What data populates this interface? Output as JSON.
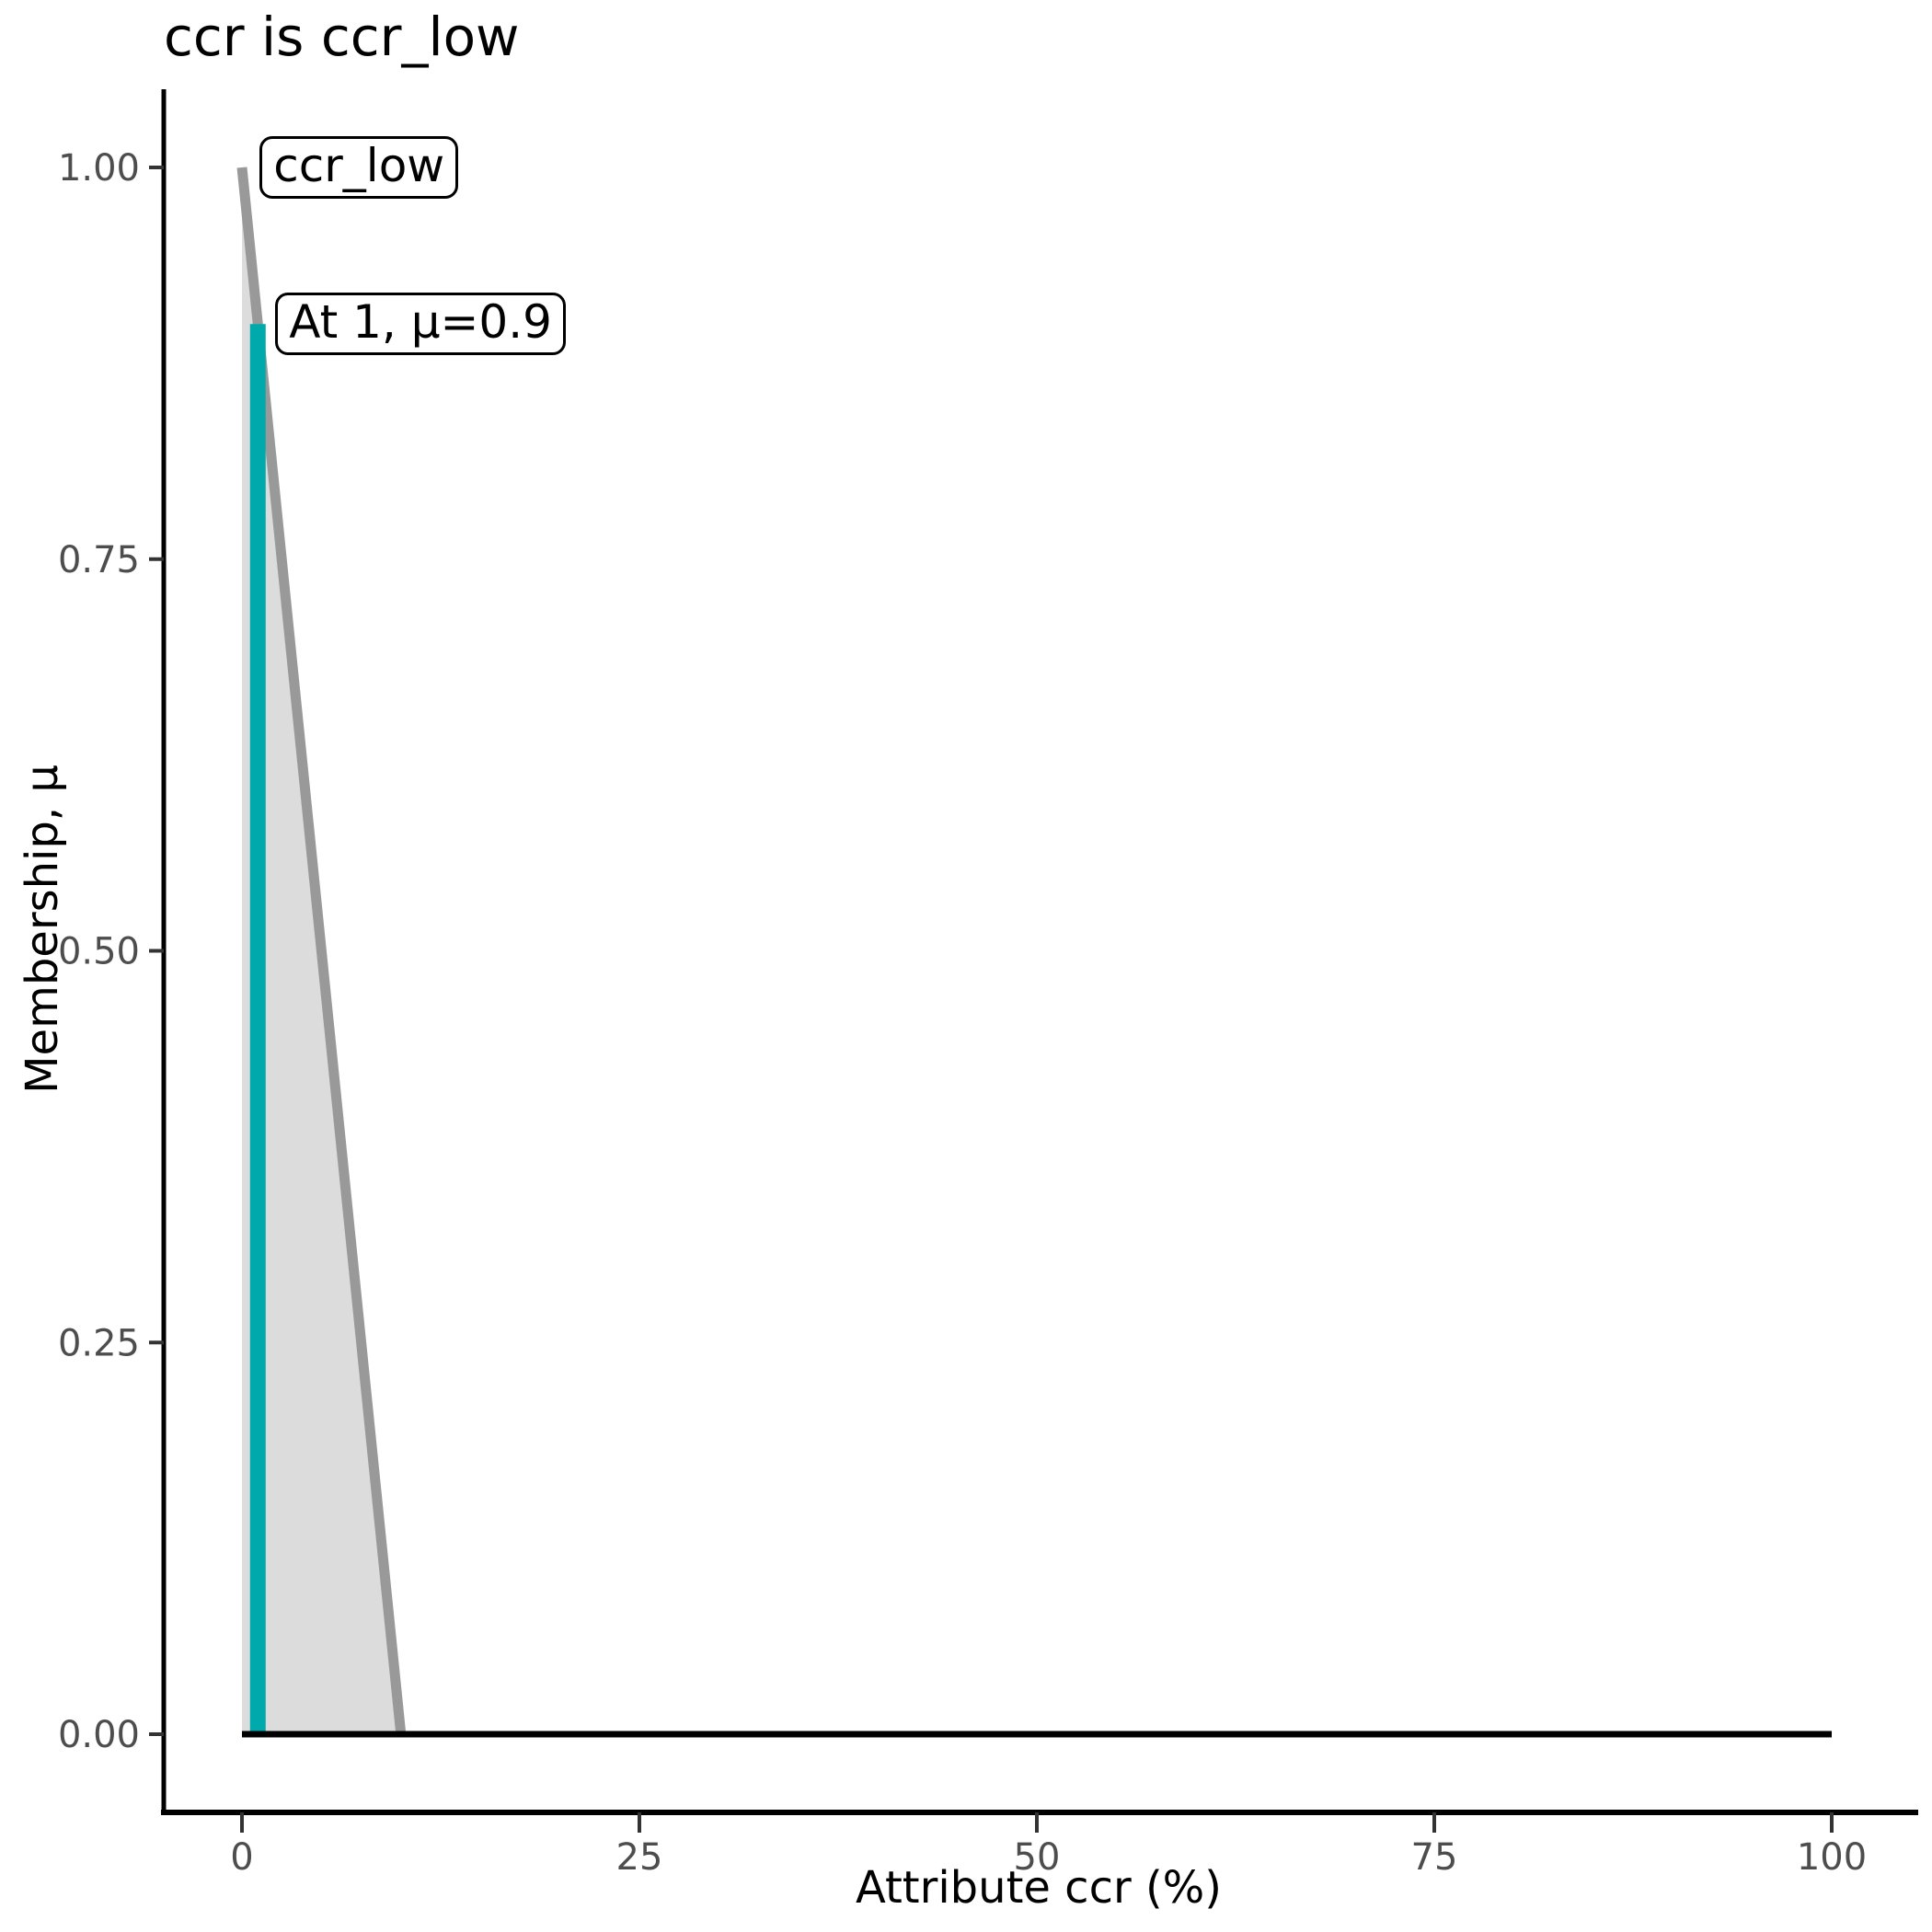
{
  "title": "ccr is ccr_low",
  "colors": {
    "background": "#FFFFFF",
    "membership_line": "#999999",
    "membership_fill": "#DCDCDC",
    "highlight": "#00A9AC",
    "baseline": "#000000",
    "axis_spine": "#000000",
    "tick_mark": "#333333",
    "tick_label": "#4D4D4D",
    "text": "#000000"
  },
  "chart_data": {
    "type": "area",
    "title": "ccr is ccr_low",
    "xlabel": "Attribute ccr (%)",
    "ylabel": "Membership, μ",
    "xlim": [
      0,
      100
    ],
    "ylim": [
      0,
      1
    ],
    "x_ticks": [
      0,
      25,
      50,
      75,
      100
    ],
    "x_tick_labels": [
      "0",
      "25",
      "50",
      "75",
      "100"
    ],
    "y_ticks": [
      0,
      0.25,
      0.5,
      0.75,
      1
    ],
    "y_tick_labels": [
      "0.00",
      "0.25",
      "0.50",
      "0.75",
      "1.00"
    ],
    "grid": false,
    "legend": "none",
    "series": [
      {
        "name": "ccr_low membership function",
        "role": "membership-line",
        "points": [
          [
            0,
            1
          ],
          [
            10,
            0
          ]
        ]
      },
      {
        "name": "zero membership baseline",
        "role": "baseline",
        "points": [
          [
            0,
            0
          ],
          [
            100,
            0
          ]
        ]
      }
    ],
    "fill_polygon": [
      [
        0,
        1
      ],
      [
        10,
        0
      ],
      [
        0,
        0
      ]
    ],
    "highlight_segment": {
      "x": 1,
      "y_from": 0,
      "y_to": 0.9
    },
    "annotations": [
      {
        "text": "ccr_low",
        "x": 1,
        "y": 1.0
      },
      {
        "text": "At 1, μ=0.9",
        "x": 1,
        "y": 0.9
      }
    ]
  }
}
